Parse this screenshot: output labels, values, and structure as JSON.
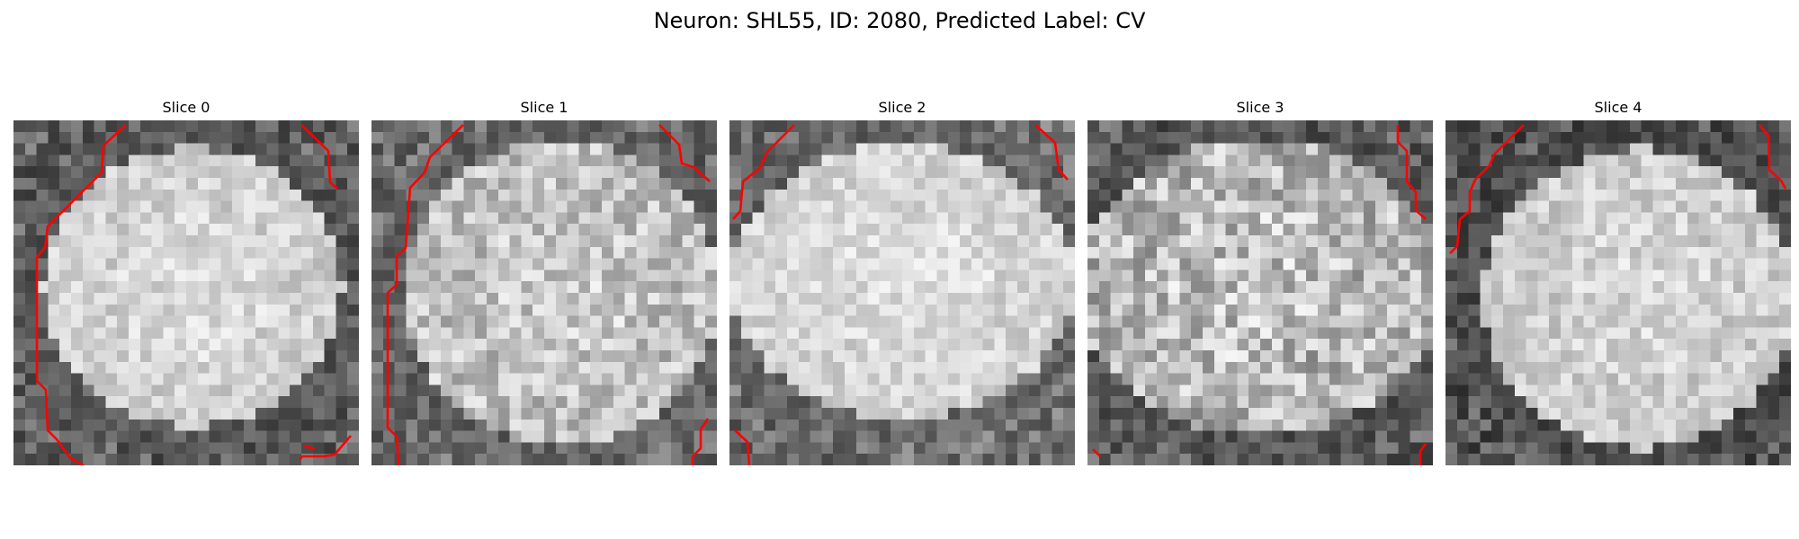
{
  "figure": {
    "title": "Neuron: SHL55, ID: 2080, Predicted Label: CV"
  },
  "panels": [
    {
      "title": "Slice 0"
    },
    {
      "title": "Slice 1"
    },
    {
      "title": "Slice 2"
    },
    {
      "title": "Slice 3"
    },
    {
      "title": "Slice 4"
    }
  ],
  "colors": {
    "contour": "#ff0000",
    "background": "#ffffff"
  }
}
